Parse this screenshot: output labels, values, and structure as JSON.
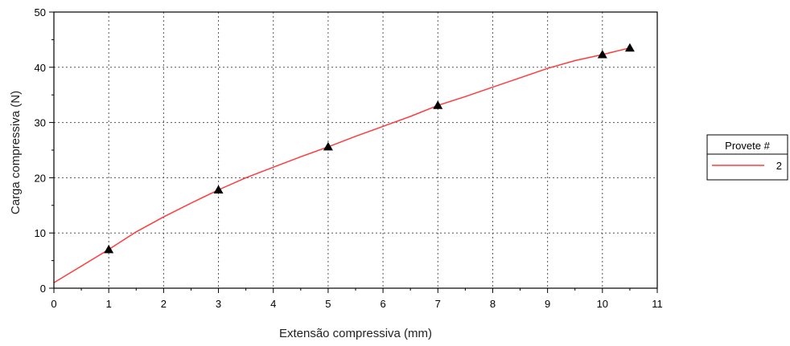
{
  "chart_data": {
    "type": "line",
    "xlabel": "Extensão compressiva (mm)",
    "ylabel": "Carga compressiva (N)",
    "xlim": [
      0,
      11
    ],
    "ylim": [
      0,
      50
    ],
    "xticks": [
      "0",
      "1",
      "2",
      "3",
      "4",
      "5",
      "6",
      "7",
      "8",
      "9",
      "10",
      "11"
    ],
    "yticks": [
      "0",
      "10",
      "20",
      "30",
      "40",
      "50"
    ],
    "grid": true,
    "legend": {
      "title": "Provete #",
      "position": "right"
    },
    "series": [
      {
        "name": "2",
        "color": "#ff3b3b",
        "x": [
          0,
          0.5,
          1,
          1.5,
          2,
          2.5,
          3,
          3.5,
          4,
          4.5,
          5,
          5.5,
          6,
          6.5,
          7,
          7.5,
          8,
          8.5,
          9,
          9.5,
          10,
          10.5
        ],
        "y": [
          1,
          4,
          7,
          10.2,
          12.9,
          15.4,
          17.8,
          20,
          21.9,
          23.8,
          25.6,
          27.5,
          29.3,
          31.1,
          33.1,
          34.7,
          36.4,
          38.1,
          39.8,
          41.2,
          42.3,
          43.5
        ]
      }
    ],
    "markers": {
      "shape": "triangle",
      "color": "#000000",
      "x": [
        1,
        3,
        5,
        7,
        10,
        10.5
      ],
      "y": [
        7,
        17.8,
        25.6,
        33.1,
        42.3,
        43.5
      ]
    }
  }
}
